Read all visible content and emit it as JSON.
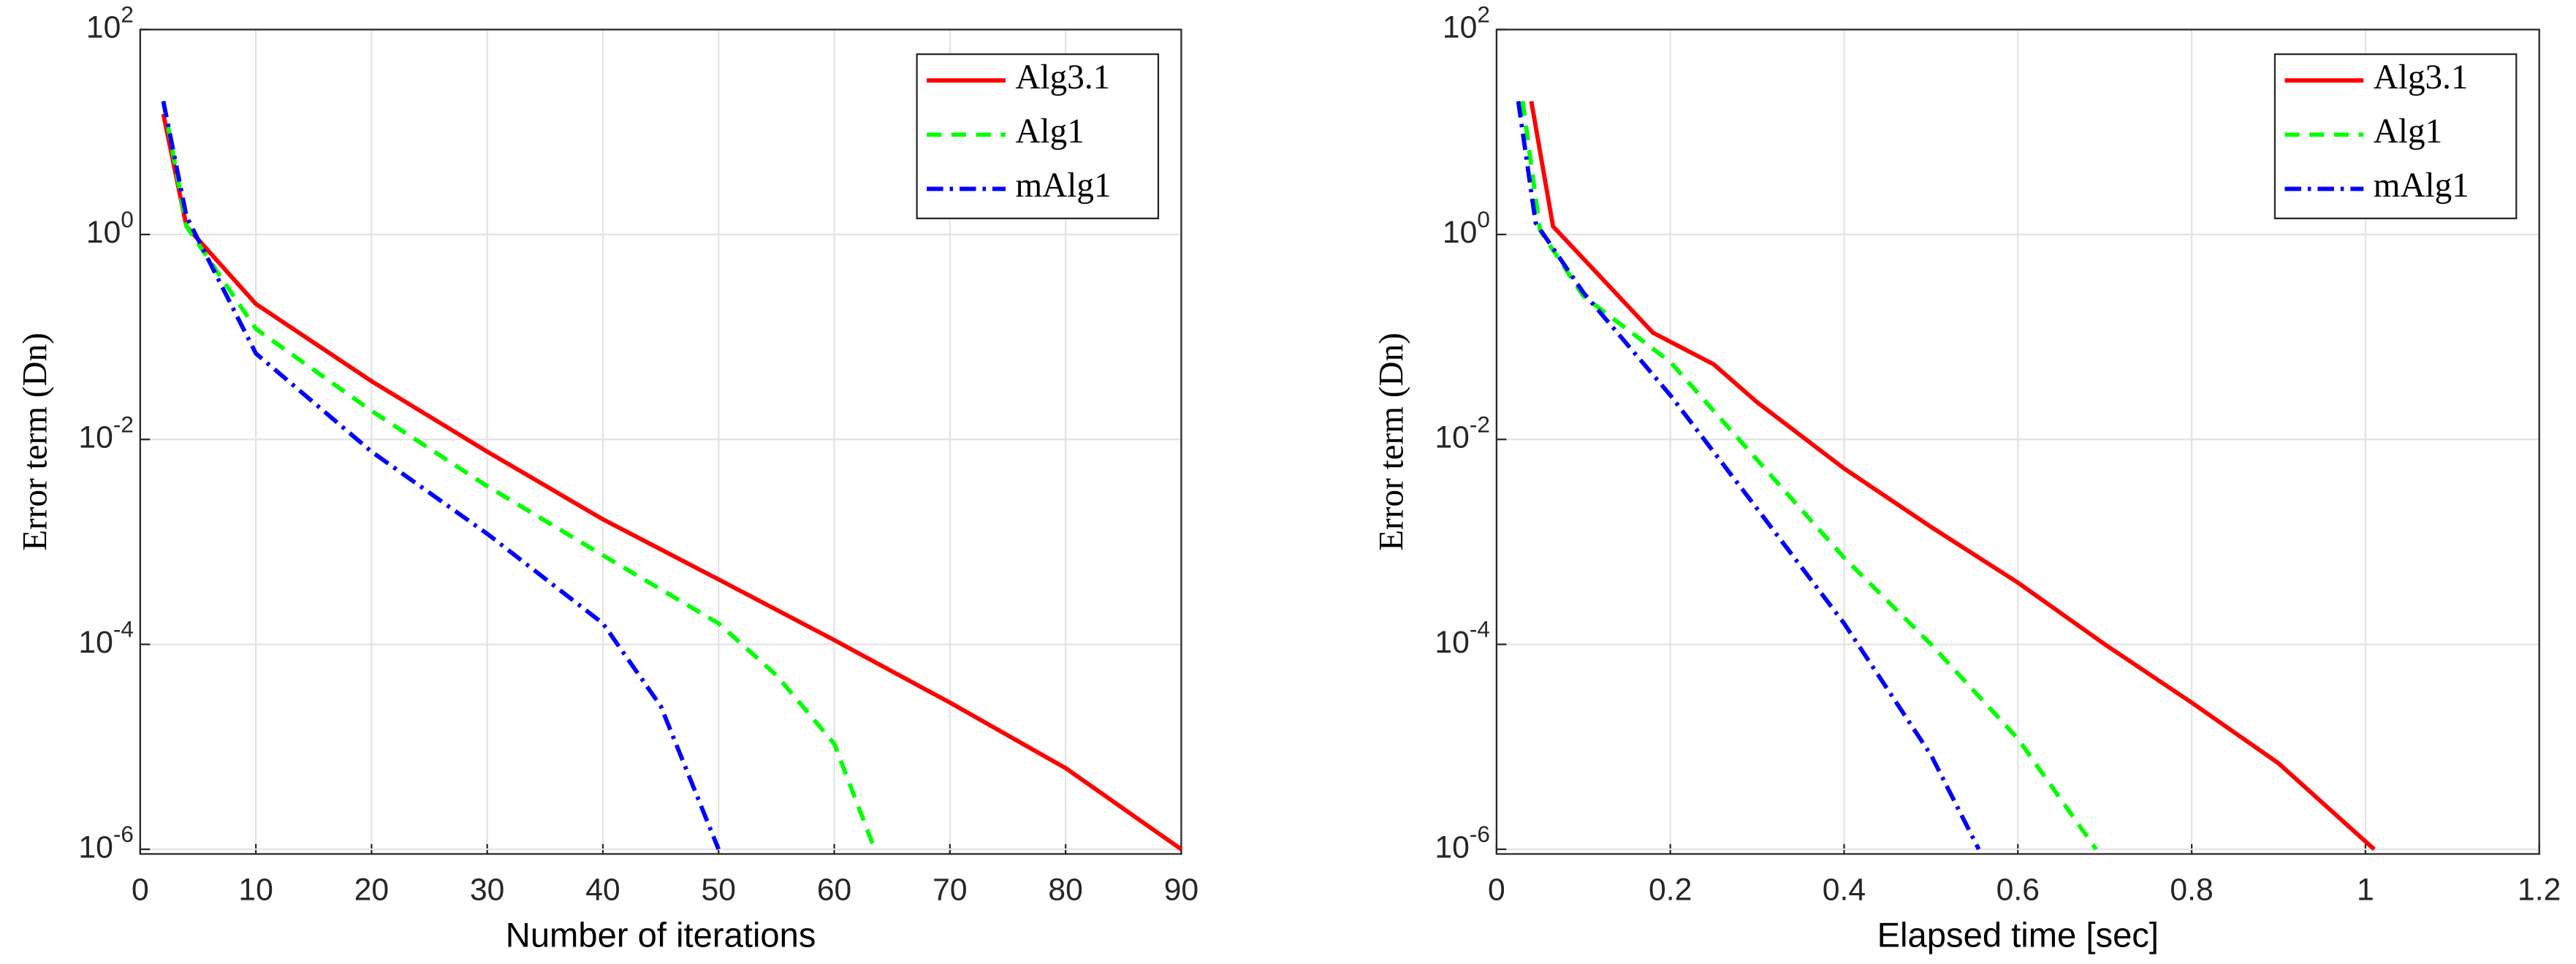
{
  "chart_data": [
    {
      "type": "line",
      "xlabel": "Number of iterations",
      "ylabel": "Error term (Dn)",
      "xlim": [
        0,
        90
      ],
      "xticks": [
        0,
        10,
        20,
        30,
        40,
        50,
        60,
        70,
        80,
        90
      ],
      "ylim": [
        9e-07,
        100
      ],
      "log_y": true,
      "grid": true,
      "legend": "upper right",
      "yticks": [
        {
          "value": 100,
          "label": "10^2"
        },
        {
          "value": 1,
          "label": "10^0"
        },
        {
          "value": 0.01,
          "label": "10^-2"
        },
        {
          "value": 0.0001,
          "label": "10^-4"
        },
        {
          "value": 1e-06,
          "label": "10^-6"
        }
      ],
      "series": [
        {
          "name": "Alg3.1",
          "color": "#ff0000",
          "dash": "solid",
          "x": [
            2,
            4,
            10,
            20,
            30,
            40,
            50,
            60,
            70,
            80,
            90
          ],
          "values": [
            15,
            1.2,
            0.21,
            0.037,
            0.0076,
            0.00166,
            0.00043,
            0.00011,
            2.7e-05,
            6.2e-06,
            1e-06
          ]
        },
        {
          "name": "Alg1",
          "color": "#00ff00",
          "dash": "dashed",
          "x": [
            2,
            4,
            10,
            20,
            30,
            40,
            50,
            55,
            60,
            63.5
          ],
          "values": [
            20,
            1.2,
            0.12,
            0.019,
            0.0035,
            0.00074,
            0.00016,
            5e-05,
            1.07e-05,
            1e-06
          ]
        },
        {
          "name": "mAlg1",
          "color": "#0000ff",
          "dash": "dashdot",
          "x": [
            2,
            4,
            10,
            20,
            30,
            40,
            45,
            50
          ],
          "values": [
            20,
            1.5,
            0.069,
            0.0076,
            0.0012,
            0.00016,
            2.5e-05,
            1e-06
          ]
        }
      ]
    },
    {
      "type": "line",
      "xlabel": "Elapsed time [sec]",
      "ylabel": "Error term (Dn)",
      "xlim": [
        0,
        1.2
      ],
      "xticks": [
        0,
        0.2,
        0.4,
        0.6,
        0.8,
        1,
        1.2
      ],
      "ylim": [
        9e-07,
        100
      ],
      "log_y": true,
      "grid": true,
      "legend": "upper right",
      "yticks": [
        {
          "value": 100,
          "label": "10^2"
        },
        {
          "value": 1,
          "label": "10^0"
        },
        {
          "value": 0.01,
          "label": "10^-2"
        },
        {
          "value": 0.0001,
          "label": "10^-4"
        },
        {
          "value": 1e-06,
          "label": "10^-6"
        }
      ],
      "series": [
        {
          "name": "Alg3.1",
          "color": "#ff0000",
          "dash": "solid",
          "x": [
            0.04,
            0.065,
            0.1,
            0.18,
            0.25,
            0.3,
            0.4,
            0.5,
            0.6,
            0.7,
            0.8,
            0.9,
            1.01
          ],
          "values": [
            20,
            1.2,
            0.58,
            0.11,
            0.054,
            0.023,
            0.0052,
            0.0014,
            0.0004,
            0.0001,
            2.7e-05,
            6.9e-06,
            1e-06
          ]
        },
        {
          "name": "Alg1",
          "color": "#00ff00",
          "dash": "dashed",
          "x": [
            0.03,
            0.05,
            0.1,
            0.2,
            0.3,
            0.4,
            0.5,
            0.6,
            0.69
          ],
          "values": [
            20,
            1.1,
            0.25,
            0.057,
            0.0063,
            0.0007,
            0.0001,
            1.2e-05,
            1e-06
          ]
        },
        {
          "name": "mAlg1",
          "color": "#0000ff",
          "dash": "dashdot",
          "x": [
            0.025,
            0.045,
            0.1,
            0.2,
            0.3,
            0.4,
            0.5,
            0.555
          ],
          "values": [
            20,
            1.3,
            0.27,
            0.027,
            0.0021,
            0.00016,
            8.3e-06,
            1e-06
          ]
        }
      ]
    }
  ]
}
